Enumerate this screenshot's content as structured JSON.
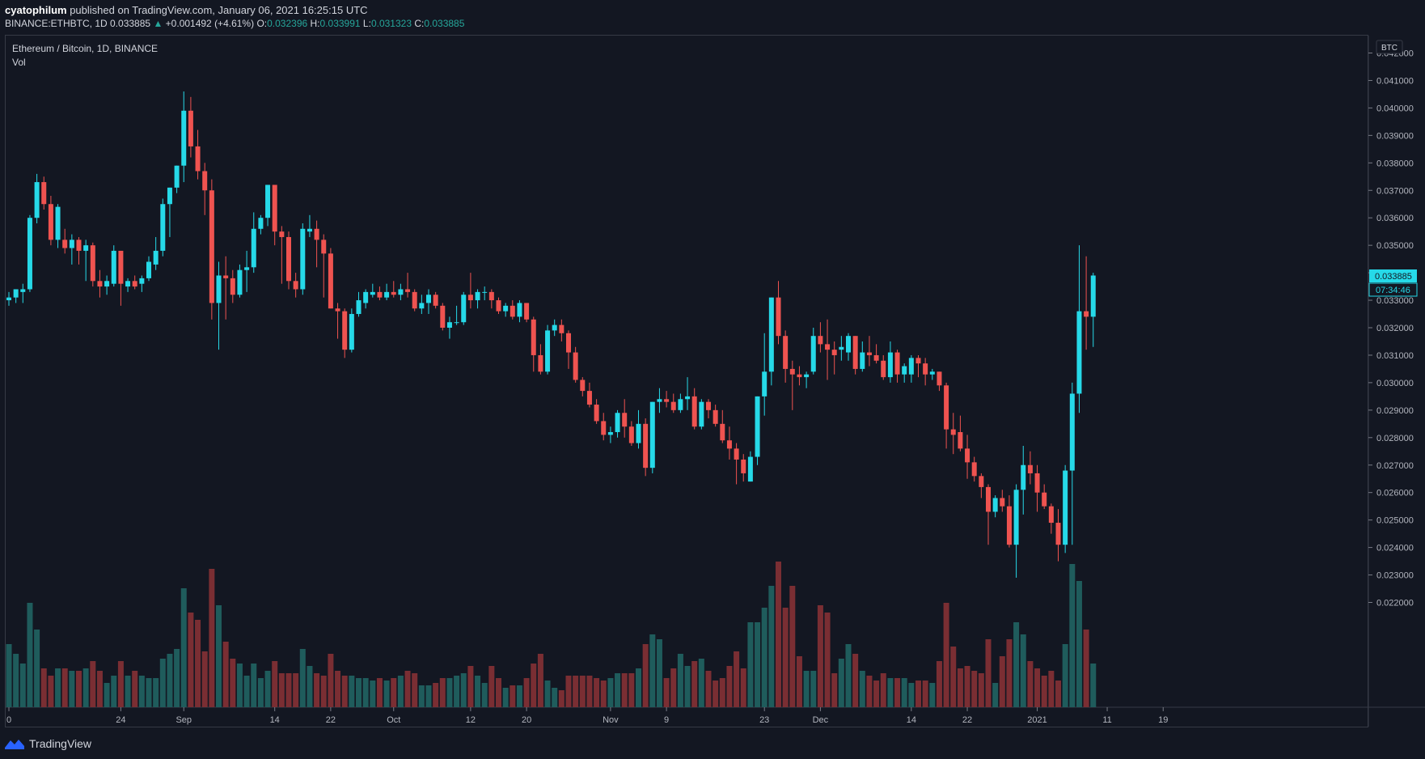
{
  "header": {
    "author": "cyatophilum",
    "published": "published on TradingView.com, January 06, 2021 16:25:15 UTC"
  },
  "symbol_line": {
    "symbol": "BINANCE:ETHBTC, 1D",
    "last": "0.033885",
    "arrow": "▲",
    "change": "+0.001492 (+4.61%)",
    "o_label": "O:",
    "o": "0.032396",
    "h_label": "H:",
    "h": "0.033991",
    "l_label": "L:",
    "l": "0.031323",
    "c_label": "C:",
    "c": "0.033885"
  },
  "legend": {
    "title": "Ethereum / Bitcoin, 1D, BINANCE",
    "vol": "Vol"
  },
  "price_axis": {
    "currency": "BTC",
    "last_price": "0.033885",
    "countdown": "07:34:46"
  },
  "footer": {
    "brand": "TradingView"
  },
  "colors": {
    "up": "#26d9e8",
    "down": "#ef5350",
    "bg": "#131722",
    "vol_up": "#1f5c5c",
    "vol_down": "#7a2e33"
  },
  "chart_data": {
    "type": "candlestick",
    "title": "Ethereum / Bitcoin, 1D, BINANCE",
    "ylim": [
      0.0212,
      0.0427
    ],
    "y_ticks": [
      "0.022000",
      "0.023000",
      "0.024000",
      "0.025000",
      "0.026000",
      "0.027000",
      "0.028000",
      "0.029000",
      "0.030000",
      "0.031000",
      "0.032000",
      "0.033000",
      "0.034000",
      "0.035000",
      "0.036000",
      "0.037000",
      "0.038000",
      "0.039000",
      "0.040000",
      "0.041000",
      "0.042000"
    ],
    "x_ticks": [
      {
        "label": "0",
        "i": 0
      },
      {
        "label": "24",
        "i": 16
      },
      {
        "label": "Sep",
        "i": 25
      },
      {
        "label": "14",
        "i": 38
      },
      {
        "label": "22",
        "i": 46
      },
      {
        "label": "Oct",
        "i": 55
      },
      {
        "label": "12",
        "i": 66
      },
      {
        "label": "20",
        "i": 74
      },
      {
        "label": "Nov",
        "i": 86
      },
      {
        "label": "9",
        "i": 94
      },
      {
        "label": "23",
        "i": 108
      },
      {
        "label": "Dec",
        "i": 116
      },
      {
        "label": "14",
        "i": 129
      },
      {
        "label": "22",
        "i": 137
      },
      {
        "label": "2021",
        "i": 147
      },
      {
        "label": "11",
        "i": 157
      },
      {
        "label": "19",
        "i": 165
      }
    ],
    "candles": [
      [
        0.033,
        0.0333,
        0.0328,
        0.0331,
        2.6
      ],
      [
        0.0331,
        0.0334,
        0.0329,
        0.0334,
        2.2
      ],
      [
        0.0333,
        0.0336,
        0.0329,
        0.0334,
        1.8
      ],
      [
        0.0334,
        0.0361,
        0.0333,
        0.036,
        4.3
      ],
      [
        0.036,
        0.0376,
        0.0358,
        0.0373,
        3.2
      ],
      [
        0.0373,
        0.0375,
        0.0363,
        0.0365,
        1.6
      ],
      [
        0.0365,
        0.0368,
        0.035,
        0.0352,
        1.3
      ],
      [
        0.0352,
        0.0365,
        0.0349,
        0.0364,
        1.6
      ],
      [
        0.0352,
        0.0356,
        0.0347,
        0.0349,
        1.6
      ],
      [
        0.0349,
        0.0354,
        0.0343,
        0.0352,
        1.5
      ],
      [
        0.0352,
        0.0353,
        0.0343,
        0.0348,
        1.5
      ],
      [
        0.0348,
        0.0352,
        0.0337,
        0.035,
        1.6
      ],
      [
        0.035,
        0.0351,
        0.0335,
        0.0337,
        1.9
      ],
      [
        0.0337,
        0.0341,
        0.0331,
        0.0335,
        1.5
      ],
      [
        0.0335,
        0.0339,
        0.0332,
        0.0337,
        1.0
      ],
      [
        0.0336,
        0.035,
        0.0335,
        0.0348,
        1.3
      ],
      [
        0.0348,
        0.0348,
        0.0328,
        0.0336,
        1.9
      ],
      [
        0.0335,
        0.0338,
        0.0333,
        0.0337,
        1.3
      ],
      [
        0.0337,
        0.0339,
        0.0334,
        0.0335,
        1.5
      ],
      [
        0.0336,
        0.0339,
        0.0333,
        0.0338,
        1.3
      ],
      [
        0.0338,
        0.0346,
        0.0337,
        0.0344,
        1.2
      ],
      [
        0.0343,
        0.0353,
        0.0341,
        0.0348,
        1.2
      ],
      [
        0.0348,
        0.0367,
        0.0346,
        0.0365,
        2.0
      ],
      [
        0.0365,
        0.0371,
        0.0353,
        0.0371,
        2.2
      ],
      [
        0.0371,
        0.0379,
        0.0369,
        0.0379,
        2.4
      ],
      [
        0.0379,
        0.0406,
        0.0373,
        0.0399,
        4.9
      ],
      [
        0.0399,
        0.0404,
        0.0382,
        0.0386,
        3.9
      ],
      [
        0.0386,
        0.0392,
        0.0374,
        0.0377,
        3.6
      ],
      [
        0.0377,
        0.038,
        0.0361,
        0.037,
        2.3
      ],
      [
        0.037,
        0.0374,
        0.0323,
        0.0329,
        5.7
      ],
      [
        0.0329,
        0.0344,
        0.0312,
        0.0339,
        4.2
      ],
      [
        0.0339,
        0.0346,
        0.0323,
        0.0338,
        2.7
      ],
      [
        0.0338,
        0.0341,
        0.0329,
        0.0332,
        2.0
      ],
      [
        0.0332,
        0.0343,
        0.0331,
        0.0341,
        1.8
      ],
      [
        0.0341,
        0.0348,
        0.0333,
        0.0342,
        1.3
      ],
      [
        0.0342,
        0.0362,
        0.034,
        0.0356,
        1.8
      ],
      [
        0.0356,
        0.0361,
        0.0354,
        0.036,
        1.2
      ],
      [
        0.036,
        0.0372,
        0.0357,
        0.0372,
        1.5
      ],
      [
        0.0372,
        0.0372,
        0.035,
        0.0355,
        1.9
      ],
      [
        0.0355,
        0.0357,
        0.0336,
        0.0353,
        1.4
      ],
      [
        0.0353,
        0.0355,
        0.0334,
        0.0337,
        1.4
      ],
      [
        0.0337,
        0.034,
        0.0331,
        0.0334,
        1.4
      ],
      [
        0.0334,
        0.0358,
        0.0332,
        0.0356,
        2.4
      ],
      [
        0.0355,
        0.0361,
        0.0353,
        0.0356,
        1.7
      ],
      [
        0.0356,
        0.0359,
        0.0342,
        0.0352,
        1.4
      ],
      [
        0.0352,
        0.0354,
        0.0331,
        0.0347,
        1.3
      ],
      [
        0.0347,
        0.0349,
        0.0327,
        0.0327,
        2.2
      ],
      [
        0.0327,
        0.0329,
        0.0316,
        0.0326,
        1.5
      ],
      [
        0.0326,
        0.0327,
        0.0309,
        0.0312,
        1.3
      ],
      [
        0.0312,
        0.0327,
        0.0311,
        0.0325,
        1.3
      ],
      [
        0.0325,
        0.0333,
        0.0324,
        0.033,
        1.2
      ],
      [
        0.0329,
        0.0334,
        0.0327,
        0.0333,
        1.2
      ],
      [
        0.0332,
        0.0336,
        0.0331,
        0.0333,
        1.1
      ],
      [
        0.0333,
        0.0335,
        0.033,
        0.0331,
        1.2
      ],
      [
        0.0331,
        0.0336,
        0.033,
        0.0333,
        1.1
      ],
      [
        0.0333,
        0.0337,
        0.0331,
        0.0332,
        1.2
      ],
      [
        0.0332,
        0.0336,
        0.033,
        0.0334,
        1.3
      ],
      [
        0.0334,
        0.034,
        0.0331,
        0.0333,
        1.5
      ],
      [
        0.0333,
        0.0334,
        0.0326,
        0.0327,
        1.4
      ],
      [
        0.0327,
        0.0332,
        0.0325,
        0.0329,
        0.9
      ],
      [
        0.0329,
        0.0334,
        0.0325,
        0.0332,
        0.9
      ],
      [
        0.0332,
        0.0333,
        0.0327,
        0.0328,
        1.0
      ],
      [
        0.0328,
        0.0329,
        0.0319,
        0.032,
        1.2
      ],
      [
        0.032,
        0.0324,
        0.0316,
        0.0322,
        1.2
      ],
      [
        0.0322,
        0.0328,
        0.0321,
        0.0322,
        1.3
      ],
      [
        0.0322,
        0.0333,
        0.0321,
        0.0332,
        1.4
      ],
      [
        0.0332,
        0.034,
        0.0327,
        0.033,
        1.7
      ],
      [
        0.033,
        0.0334,
        0.0327,
        0.0333,
        1.3
      ],
      [
        0.0333,
        0.0335,
        0.033,
        0.0333,
        1.0
      ],
      [
        0.0333,
        0.0334,
        0.0327,
        0.033,
        1.7
      ],
      [
        0.033,
        0.0331,
        0.0325,
        0.0326,
        1.2
      ],
      [
        0.0326,
        0.0329,
        0.0324,
        0.0328,
        0.8
      ],
      [
        0.0328,
        0.033,
        0.0323,
        0.0324,
        0.9
      ],
      [
        0.0324,
        0.033,
        0.0322,
        0.0329,
        0.9
      ],
      [
        0.0329,
        0.0329,
        0.0322,
        0.0323,
        1.2
      ],
      [
        0.0323,
        0.0324,
        0.0304,
        0.031,
        1.8
      ],
      [
        0.031,
        0.0314,
        0.0303,
        0.0304,
        2.2
      ],
      [
        0.0304,
        0.0321,
        0.0303,
        0.0319,
        1.1
      ],
      [
        0.0319,
        0.0323,
        0.0317,
        0.0321,
        0.8
      ],
      [
        0.0321,
        0.0323,
        0.0315,
        0.0318,
        0.7
      ],
      [
        0.0318,
        0.0319,
        0.0305,
        0.0311,
        1.3
      ],
      [
        0.0311,
        0.0313,
        0.03,
        0.0301,
        1.3
      ],
      [
        0.0301,
        0.0302,
        0.0295,
        0.0297,
        1.3
      ],
      [
        0.0297,
        0.03,
        0.0291,
        0.0292,
        1.3
      ],
      [
        0.0292,
        0.0294,
        0.0285,
        0.0286,
        1.2
      ],
      [
        0.0286,
        0.0289,
        0.0279,
        0.0281,
        1.1
      ],
      [
        0.0281,
        0.0284,
        0.0278,
        0.0282,
        1.2
      ],
      [
        0.0282,
        0.029,
        0.028,
        0.0289,
        1.4
      ],
      [
        0.0289,
        0.0294,
        0.028,
        0.0284,
        1.4
      ],
      [
        0.0284,
        0.0286,
        0.0277,
        0.0278,
        1.4
      ],
      [
        0.0278,
        0.029,
        0.0276,
        0.0285,
        1.6
      ],
      [
        0.0285,
        0.0287,
        0.0266,
        0.0269,
        2.6
      ],
      [
        0.0269,
        0.0293,
        0.0267,
        0.0293,
        3.0
      ],
      [
        0.0293,
        0.0298,
        0.0289,
        0.0294,
        2.8
      ],
      [
        0.0294,
        0.0297,
        0.0291,
        0.0293,
        1.2
      ],
      [
        0.0293,
        0.0296,
        0.0289,
        0.029,
        1.6
      ],
      [
        0.029,
        0.0296,
        0.0289,
        0.0294,
        2.2
      ],
      [
        0.0294,
        0.0302,
        0.029,
        0.0295,
        1.7
      ],
      [
        0.0295,
        0.0298,
        0.0283,
        0.0284,
        1.9
      ],
      [
        0.0284,
        0.0294,
        0.0283,
        0.0293,
        2.0
      ],
      [
        0.0293,
        0.0294,
        0.0287,
        0.029,
        1.5
      ],
      [
        0.029,
        0.0292,
        0.0284,
        0.0285,
        1.1
      ],
      [
        0.0285,
        0.029,
        0.0278,
        0.0279,
        1.2
      ],
      [
        0.0279,
        0.0284,
        0.0272,
        0.0276,
        1.7
      ],
      [
        0.0276,
        0.0278,
        0.0263,
        0.0272,
        2.3
      ],
      [
        0.0272,
        0.0274,
        0.0264,
        0.0267,
        1.6
      ],
      [
        0.0264,
        0.0275,
        0.0264,
        0.0273,
        3.5
      ],
      [
        0.0273,
        0.0295,
        0.027,
        0.0295,
        3.5
      ],
      [
        0.0295,
        0.0318,
        0.0288,
        0.0304,
        4.1
      ],
      [
        0.0304,
        0.0331,
        0.0299,
        0.0331,
        5.0
      ],
      [
        0.0331,
        0.0337,
        0.0314,
        0.0317,
        6.0
      ],
      [
        0.0317,
        0.0319,
        0.03,
        0.0305,
        4.1
      ],
      [
        0.0305,
        0.0308,
        0.029,
        0.0303,
        5.0
      ],
      [
        0.0303,
        0.0306,
        0.0299,
        0.0302,
        2.1
      ],
      [
        0.0302,
        0.0304,
        0.0298,
        0.0303,
        1.5
      ],
      [
        0.0304,
        0.032,
        0.0303,
        0.0317,
        1.5
      ],
      [
        0.0317,
        0.0322,
        0.0311,
        0.0314,
        4.2
      ],
      [
        0.0314,
        0.0323,
        0.0301,
        0.0312,
        3.9
      ],
      [
        0.0312,
        0.0315,
        0.0303,
        0.031,
        1.4
      ],
      [
        0.0312,
        0.0317,
        0.0308,
        0.0313,
        2.0
      ],
      [
        0.0311,
        0.0318,
        0.0308,
        0.0317,
        2.6
      ],
      [
        0.0317,
        0.0317,
        0.0303,
        0.0305,
        2.2
      ],
      [
        0.0305,
        0.0315,
        0.0304,
        0.0311,
        1.5
      ],
      [
        0.0311,
        0.0317,
        0.0306,
        0.031,
        1.3
      ],
      [
        0.031,
        0.0314,
        0.0307,
        0.0308,
        1.1
      ],
      [
        0.0308,
        0.031,
        0.0301,
        0.0302,
        1.4
      ],
      [
        0.0302,
        0.0315,
        0.03,
        0.0311,
        1.2
      ],
      [
        0.0311,
        0.0312,
        0.03,
        0.0303,
        1.2
      ],
      [
        0.0303,
        0.0307,
        0.03,
        0.0306,
        1.2
      ],
      [
        0.0303,
        0.031,
        0.03,
        0.0309,
        1.0
      ],
      [
        0.0309,
        0.031,
        0.0302,
        0.0307,
        1.1
      ],
      [
        0.0307,
        0.0309,
        0.0299,
        0.0303,
        1.1
      ],
      [
        0.0303,
        0.0305,
        0.0301,
        0.0304,
        1.0
      ],
      [
        0.0304,
        0.0304,
        0.0297,
        0.0299,
        1.9
      ],
      [
        0.0299,
        0.03,
        0.0276,
        0.0283,
        4.3
      ],
      [
        0.0283,
        0.0289,
        0.0274,
        0.0281,
        2.5
      ],
      [
        0.0282,
        0.0288,
        0.0275,
        0.0276,
        1.6
      ],
      [
        0.0276,
        0.0281,
        0.0265,
        0.0271,
        1.7
      ],
      [
        0.0271,
        0.0273,
        0.0264,
        0.0266,
        1.5
      ],
      [
        0.0266,
        0.0267,
        0.0258,
        0.0262,
        1.4
      ],
      [
        0.0262,
        0.0263,
        0.0241,
        0.0253,
        2.8
      ],
      [
        0.0253,
        0.0259,
        0.0251,
        0.0258,
        1.0
      ],
      [
        0.0258,
        0.0261,
        0.0253,
        0.0255,
        2.1
      ],
      [
        0.0255,
        0.0259,
        0.024,
        0.0241,
        2.8
      ],
      [
        0.0241,
        0.0263,
        0.0229,
        0.0261,
        3.5
      ],
      [
        0.0261,
        0.0277,
        0.0252,
        0.027,
        3.0
      ],
      [
        0.027,
        0.0275,
        0.0263,
        0.0267,
        1.9
      ],
      [
        0.0267,
        0.027,
        0.0253,
        0.026,
        1.6
      ],
      [
        0.026,
        0.0263,
        0.0254,
        0.0255,
        1.3
      ],
      [
        0.0255,
        0.0256,
        0.0245,
        0.0249,
        1.5
      ],
      [
        0.0249,
        0.0254,
        0.0235,
        0.0241,
        1.1
      ],
      [
        0.0241,
        0.027,
        0.0238,
        0.0268,
        2.6
      ],
      [
        0.0268,
        0.03,
        0.0241,
        0.0296,
        5.9
      ],
      [
        0.0296,
        0.035,
        0.0289,
        0.0326,
        5.2
      ],
      [
        0.0326,
        0.0346,
        0.0312,
        0.0324,
        3.2
      ],
      [
        0.0324,
        0.034,
        0.0313,
        0.0339,
        1.8
      ]
    ]
  }
}
